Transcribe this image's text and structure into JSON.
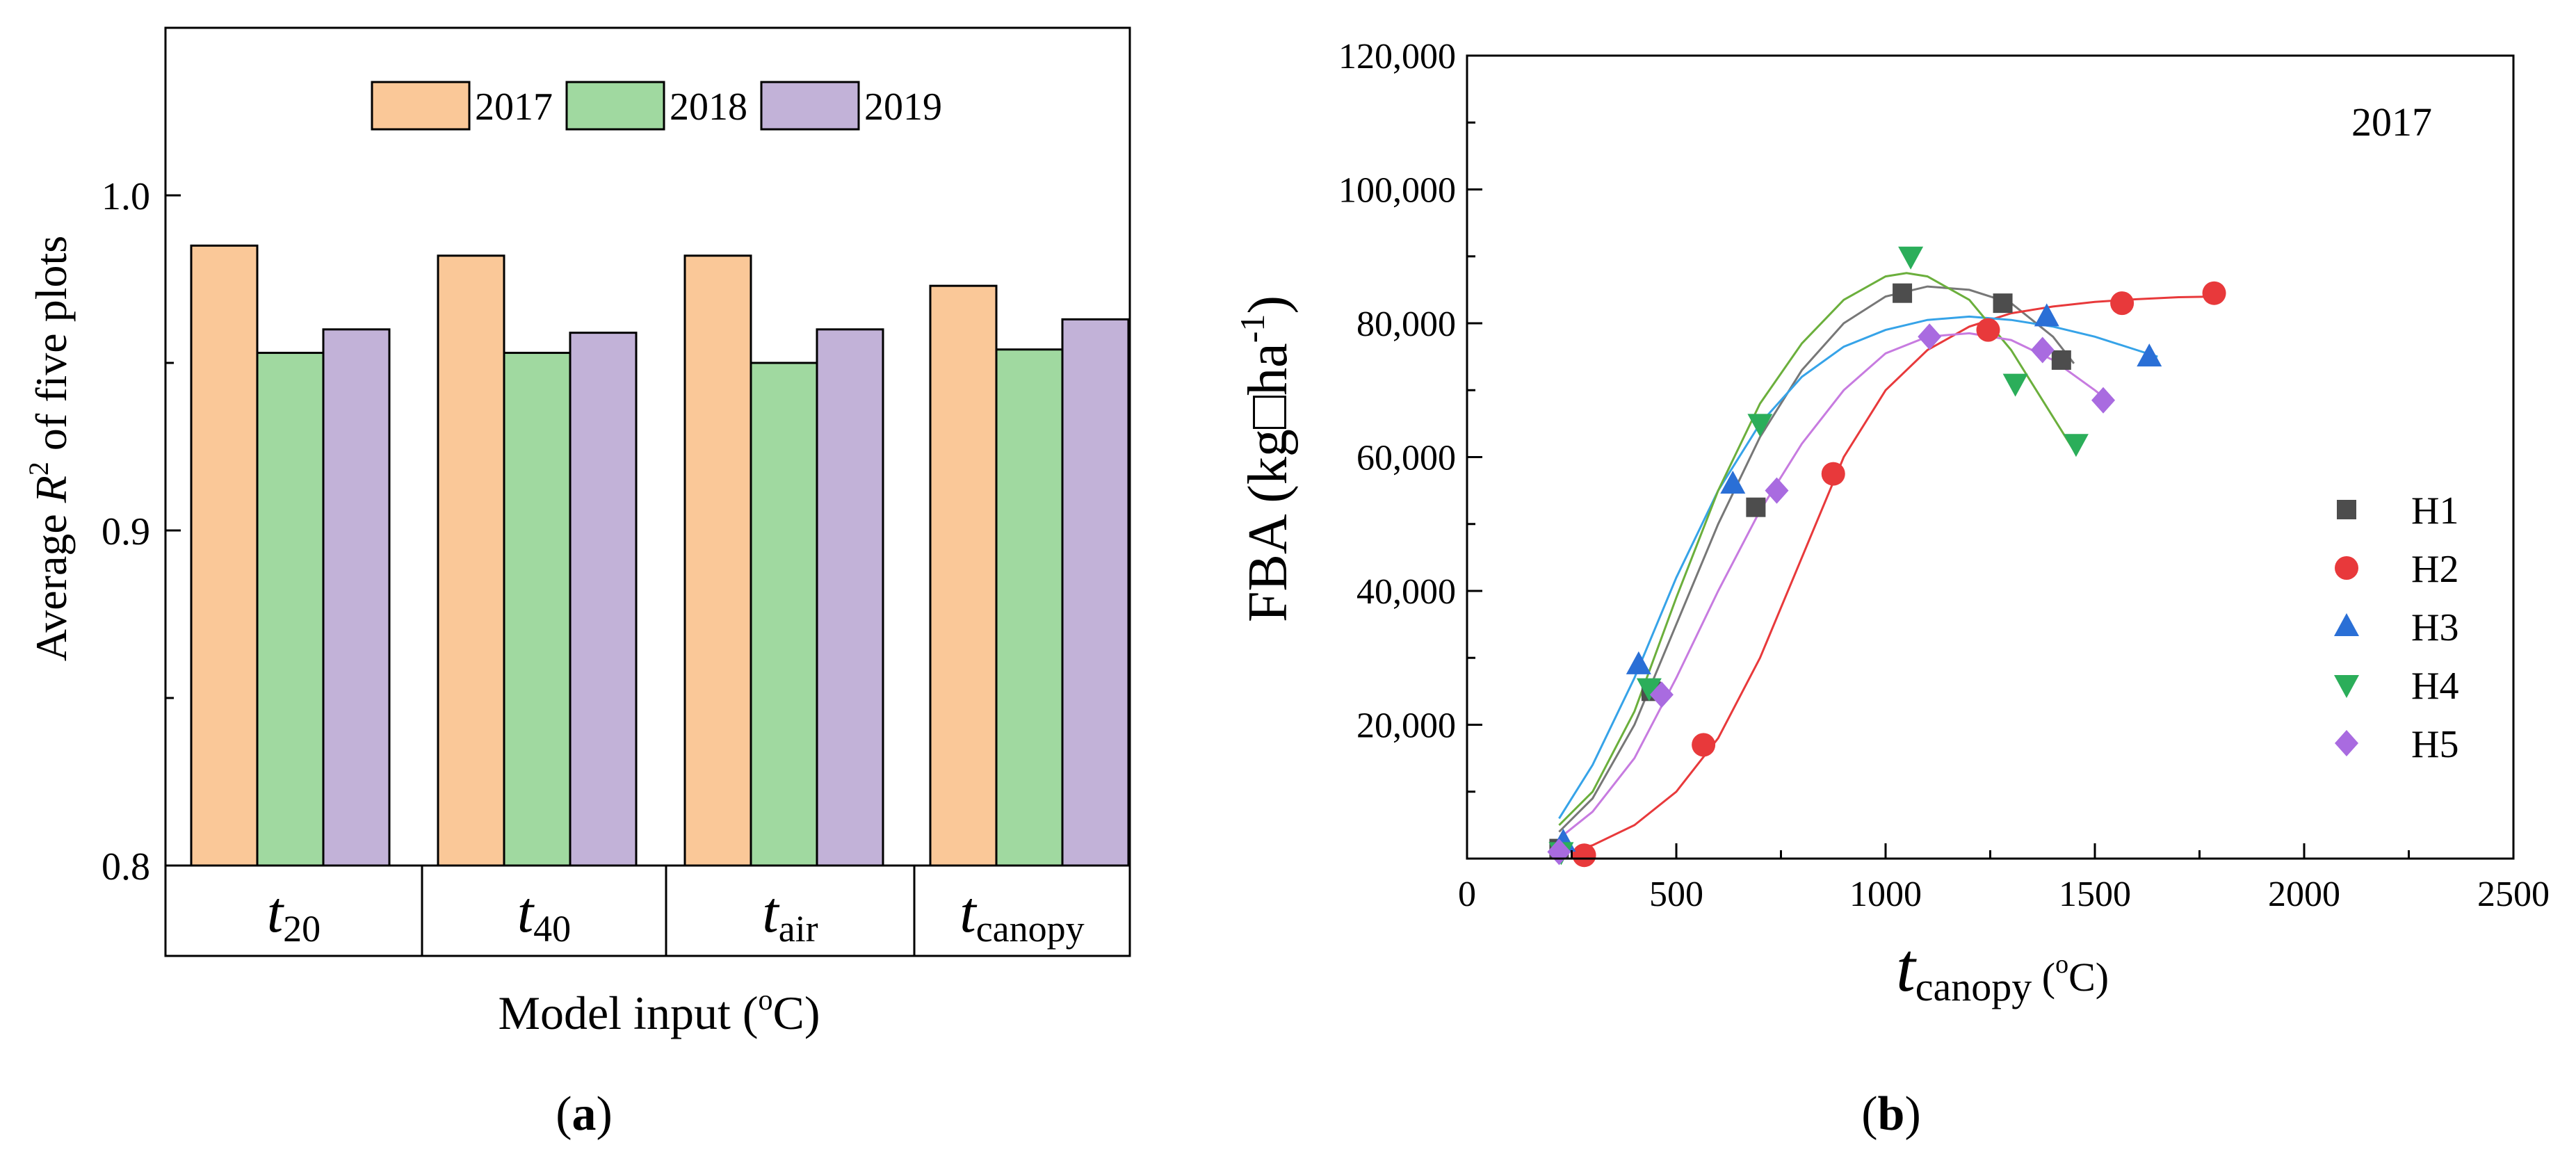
{
  "chart_data": [
    {
      "type": "bar",
      "panel_label": "a",
      "ylabel_parts": [
        "Average ",
        "R",
        "2",
        " of five plots"
      ],
      "xlabel_parts": [
        "Model input (",
        "o",
        "C)"
      ],
      "categories": [
        {
          "main": "t",
          "sub": "20"
        },
        {
          "main": "t",
          "sub": "40"
        },
        {
          "main": "t",
          "sub": "air"
        },
        {
          "main": "t",
          "sub": "canopy"
        }
      ],
      "series": [
        {
          "name": "2017",
          "color": "#FAC898",
          "values": [
            0.985,
            0.982,
            0.982,
            0.973
          ]
        },
        {
          "name": "2018",
          "color": "#A0D9A0",
          "values": [
            0.953,
            0.953,
            0.95,
            0.954
          ]
        },
        {
          "name": "2019",
          "color": "#C2B2D8",
          "values": [
            0.96,
            0.959,
            0.96,
            0.963
          ]
        }
      ],
      "ylim": [
        0.8,
        1.05
      ],
      "yticks": [
        0.8,
        0.9,
        1.0
      ],
      "ytick_labels": [
        "0.8",
        "0.9",
        "1.0"
      ],
      "legend_placement": "top-center"
    },
    {
      "type": "scatter",
      "panel_label": "b",
      "ylabel_parts": [
        "FBA (kg",
        "□",
        "ha",
        "-1",
        ")"
      ],
      "xlabel_parts": [
        "t",
        "canopy",
        " (",
        "o",
        "C)"
      ],
      "annotation": "2017",
      "xlim": [
        0,
        2500
      ],
      "ylim": [
        0,
        120000
      ],
      "xticks": [
        0,
        500,
        1000,
        1500,
        2000,
        2500
      ],
      "xtick_labels": [
        "0",
        "500",
        "1000",
        "1500",
        "2000",
        "2500"
      ],
      "yticks": [
        20000,
        40000,
        60000,
        80000,
        100000,
        120000
      ],
      "ytick_labels": [
        "20,000",
        "40,000",
        "60,000",
        "80,000",
        "100,000",
        "120,000"
      ],
      "legend_placement": "center-right",
      "series": [
        {
          "name": "H1",
          "marker": "square",
          "color": "#4D4D4D",
          "line_color": "#777777",
          "x": [
            220,
            440,
            690,
            1040,
            1280,
            1420
          ],
          "y": [
            1500,
            25000,
            52500,
            84500,
            83000,
            74500
          ],
          "fit_x": [
            220,
            300,
            400,
            500,
            600,
            700,
            800,
            900,
            1000,
            1100,
            1200,
            1300,
            1400,
            1450
          ],
          "fit_y": [
            4000,
            9000,
            20000,
            35000,
            50000,
            63000,
            73000,
            80000,
            84000,
            85500,
            85000,
            83000,
            78000,
            74000
          ]
        },
        {
          "name": "H2",
          "marker": "circle",
          "color": "#E8393B",
          "line_color": "#E8393B",
          "x": [
            280,
            565,
            875,
            1245,
            1565,
            1785
          ],
          "y": [
            500,
            17000,
            57500,
            79000,
            83000,
            84500
          ],
          "fit_x": [
            240,
            300,
            400,
            500,
            600,
            700,
            800,
            900,
            1000,
            1100,
            1200,
            1300,
            1400,
            1500,
            1600,
            1700,
            1800
          ],
          "fit_y": [
            1000,
            2000,
            5000,
            10000,
            18000,
            30000,
            45000,
            60000,
            70000,
            76000,
            79500,
            81500,
            82500,
            83200,
            83600,
            83900,
            84000
          ]
        },
        {
          "name": "H3",
          "marker": "triangle-up",
          "color": "#2A6FD6",
          "line_color": "#36A3E8",
          "x": [
            230,
            410,
            635,
            1385,
            1630
          ],
          "y": [
            2500,
            29000,
            56000,
            81000,
            75000
          ],
          "fit_x": [
            220,
            300,
            400,
            500,
            600,
            700,
            800,
            900,
            1000,
            1100,
            1200,
            1300,
            1400,
            1500,
            1600,
            1650
          ],
          "fit_y": [
            6000,
            14000,
            27000,
            42000,
            55000,
            65000,
            72000,
            76500,
            79000,
            80500,
            81000,
            80500,
            79500,
            78000,
            76000,
            75000
          ]
        },
        {
          "name": "H4",
          "marker": "triangle-down",
          "color": "#2BAE5A",
          "line_color": "#6BAF3C",
          "x": [
            225,
            435,
            700,
            1060,
            1310,
            1455
          ],
          "y": [
            1000,
            25500,
            65000,
            90000,
            71000,
            62000
          ],
          "fit_x": [
            220,
            300,
            400,
            500,
            600,
            700,
            800,
            900,
            1000,
            1050,
            1100,
            1200,
            1300,
            1400,
            1450
          ],
          "fit_y": [
            5000,
            10000,
            22000,
            39000,
            55000,
            68000,
            77000,
            83500,
            87000,
            87500,
            87000,
            83500,
            76000,
            66000,
            61000
          ]
        },
        {
          "name": "H5",
          "marker": "diamond",
          "color": "#A96BE0",
          "line_color": "#C77BE0",
          "x": [
            220,
            465,
            740,
            1105,
            1375,
            1520
          ],
          "y": [
            1000,
            24500,
            55000,
            78000,
            76000,
            68500
          ],
          "fit_x": [
            220,
            300,
            400,
            500,
            600,
            700,
            800,
            900,
            1000,
            1100,
            1200,
            1300,
            1400,
            1500,
            1530
          ],
          "fit_y": [
            3000,
            7000,
            15000,
            27000,
            40000,
            52000,
            62000,
            70000,
            75500,
            78000,
            78500,
            77500,
            74500,
            70000,
            68500
          ]
        }
      ]
    }
  ]
}
